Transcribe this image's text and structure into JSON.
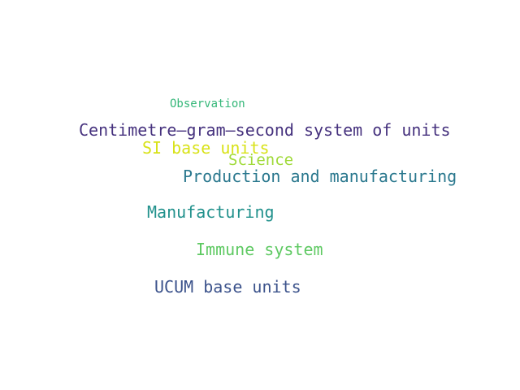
{
  "words": [
    {
      "text": "Observation",
      "color": "#35b779"
    },
    {
      "text": "Centimetre–gram–second system of units",
      "color": "#46327e"
    },
    {
      "text": "SI base units",
      "color": "#d8e219"
    },
    {
      "text": "Science",
      "color": "#a0da39"
    },
    {
      "text": "Production and manufacturing",
      "color": "#2a788e"
    },
    {
      "text": "Manufacturing",
      "color": "#21918c"
    },
    {
      "text": "Immune system",
      "color": "#5ec962"
    },
    {
      "text": "UCUM base units",
      "color": "#3b528b"
    }
  ]
}
